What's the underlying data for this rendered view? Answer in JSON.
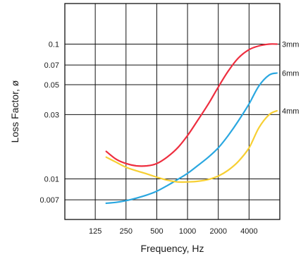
{
  "chart_data": {
    "type": "line",
    "xlabel": "Frequency, Hz",
    "ylabel": "Loss Factor, ø",
    "x_scale": "log",
    "y_scale": "log",
    "xlim": [
      63,
      8000
    ],
    "ylim": [
      0.005,
      0.2
    ],
    "x_ticks": [
      125,
      250,
      500,
      1000,
      2000,
      4000
    ],
    "x_tick_labels": [
      "125",
      "250",
      "500",
      "1000",
      "2000",
      "4000"
    ],
    "y_ticks": [
      0.1,
      0.07,
      0.05,
      0.03,
      0.01,
      0.007
    ],
    "y_tick_labels": [
      "0.1",
      "0.07",
      "0.05",
      "0.03",
      "0.01",
      "0.007"
    ],
    "grid": true,
    "series": [
      {
        "name": "3mm",
        "color": "#ee2e3f",
        "x": [
          160,
          200,
          250,
          315,
          400,
          500,
          630,
          800,
          1000,
          1250,
          1600,
          2000,
          2500,
          3150,
          4000,
          5000,
          6300,
          7500
        ],
        "y": [
          0.016,
          0.014,
          0.013,
          0.0125,
          0.0125,
          0.013,
          0.0145,
          0.017,
          0.021,
          0.027,
          0.036,
          0.048,
          0.063,
          0.079,
          0.091,
          0.097,
          0.1,
          0.1
        ]
      },
      {
        "name": "6mm",
        "color": "#2aa7e0",
        "x": [
          160,
          200,
          250,
          315,
          400,
          500,
          630,
          800,
          1000,
          1250,
          1600,
          2000,
          2500,
          3150,
          4000,
          5000,
          6300,
          7500
        ],
        "y": [
          0.0066,
          0.0067,
          0.0069,
          0.0072,
          0.0076,
          0.0081,
          0.0089,
          0.0099,
          0.011,
          0.0125,
          0.0145,
          0.017,
          0.021,
          0.027,
          0.036,
          0.049,
          0.059,
          0.061
        ]
      },
      {
        "name": "4mm",
        "color": "#f7cf33",
        "x": [
          160,
          200,
          250,
          315,
          400,
          500,
          630,
          800,
          1000,
          1250,
          1600,
          2000,
          2500,
          3150,
          4000,
          5000,
          6300,
          7500
        ],
        "y": [
          0.0145,
          0.0133,
          0.0122,
          0.0115,
          0.0109,
          0.0103,
          0.0098,
          0.0095,
          0.0095,
          0.0096,
          0.0099,
          0.0105,
          0.0116,
          0.0135,
          0.017,
          0.024,
          0.03,
          0.032
        ]
      }
    ]
  }
}
